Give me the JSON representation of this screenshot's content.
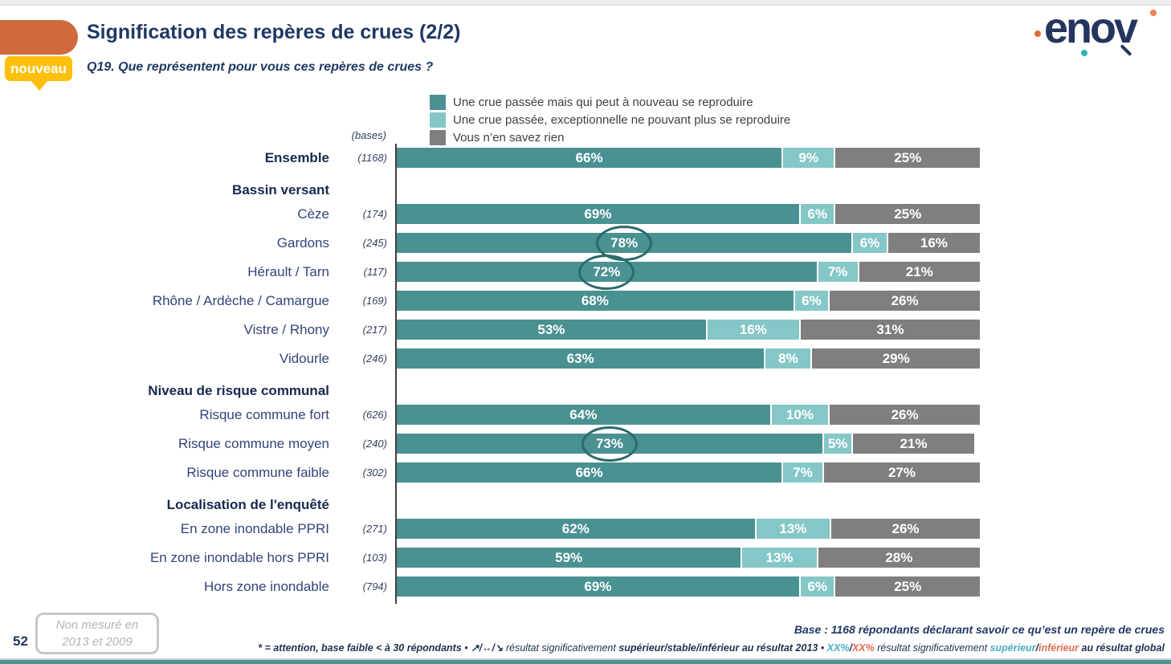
{
  "header": {
    "title": "Signification des repères de crues (2/2)",
    "question": "Q19. Que représentent pour vous ces repères de crues ?",
    "badge": "nouveau",
    "logo_text": "enov"
  },
  "colors": {
    "accent_orange_tab": "#d0693b",
    "badge_yellow": "#fcc00d",
    "title_navy": "#1f3864",
    "circle_stroke": "#2c6a6c",
    "bottom_bar_teal": "#4a9596",
    "footnote_teal": "#4bacc6",
    "footnote_orange": "#e26b4e"
  },
  "chart_data": {
    "type": "bar",
    "stacked": true,
    "orientation": "horizontal",
    "unit": "%",
    "xlim": [
      0,
      100
    ],
    "legend_position": "top",
    "bases_header": "(bases)",
    "series_labels": [
      "Une crue passée mais qui peut à nouveau se reproduire",
      "Une crue passée, exceptionnelle ne pouvant plus se reproduire",
      "Vous n’en savez rien"
    ],
    "series_colors": [
      "#4a9192",
      "#85c7c7",
      "#7f7f7f"
    ],
    "rows": [
      {
        "kind": "bar",
        "label": "Ensemble",
        "base": "(1168)",
        "values": [
          66,
          9,
          25
        ],
        "bold": true,
        "circled": false
      },
      {
        "kind": "section",
        "label": "Bassin versant"
      },
      {
        "kind": "bar",
        "label": "Cèze",
        "base": "(174)",
        "values": [
          69,
          6,
          25
        ],
        "circled": false
      },
      {
        "kind": "bar",
        "label": "Gardons",
        "base": "(245)",
        "values": [
          78,
          6,
          16
        ],
        "circled": true
      },
      {
        "kind": "bar",
        "label": "Hérault / Tarn",
        "base": "(117)",
        "values": [
          72,
          7,
          21
        ],
        "circled": true
      },
      {
        "kind": "bar",
        "label": "Rhône / Ardèche / Camargue",
        "base": "(169)",
        "values": [
          68,
          6,
          26
        ],
        "circled": false
      },
      {
        "kind": "bar",
        "label": "Vistre / Rhony",
        "base": "(217)",
        "values": [
          53,
          16,
          31
        ],
        "circled": false
      },
      {
        "kind": "bar",
        "label": "Vidourle",
        "base": "(246)",
        "values": [
          63,
          8,
          29
        ],
        "circled": false
      },
      {
        "kind": "section",
        "label": "Niveau de risque communal"
      },
      {
        "kind": "bar",
        "label": "Risque commune fort",
        "base": "(626)",
        "values": [
          64,
          10,
          26
        ],
        "circled": false
      },
      {
        "kind": "bar",
        "label": "Risque commune moyen",
        "base": "(240)",
        "values": [
          73,
          5,
          21
        ],
        "circled": true
      },
      {
        "kind": "bar",
        "label": "Risque commune faible",
        "base": "(302)",
        "values": [
          66,
          7,
          27
        ],
        "circled": false
      },
      {
        "kind": "section",
        "label": "Localisation de l'enquêté"
      },
      {
        "kind": "bar",
        "label": "En zone inondable PPRI",
        "base": "(271)",
        "values": [
          62,
          13,
          26
        ],
        "circled": false
      },
      {
        "kind": "bar",
        "label": "En zone inondable hors PPRI",
        "base": "(103)",
        "values": [
          59,
          13,
          28
        ],
        "circled": false
      },
      {
        "kind": "bar",
        "label": "Hors zone inondable",
        "base": "(794)",
        "values": [
          69,
          6,
          25
        ],
        "circled": false
      }
    ]
  },
  "footer": {
    "page_number": "52",
    "note_box_line1": "Non mesuré en",
    "note_box_line2": "2013 et 2009",
    "base_note": "Base : 1168 répondants déclarant savoir ce qu’est un repère de crues",
    "footnote": {
      "part1": "* = attention, base faible < à 30 répondants",
      "sep1": " • ",
      "arrows": "↗/↔/↘",
      "part2": " résultat significativement ",
      "part2_bold": "supérieur/stable/inférieur",
      "part2_tail": " au résultat 2013",
      "sep2": " • ",
      "xx_sup": "XX%",
      "slash1": "/",
      "xx_inf": "XX%",
      "part3": " résultat significativement ",
      "sup_word": "supérieur",
      "slash2": "/",
      "inf_word": "inférieur",
      "part4": " au résultat global"
    }
  }
}
